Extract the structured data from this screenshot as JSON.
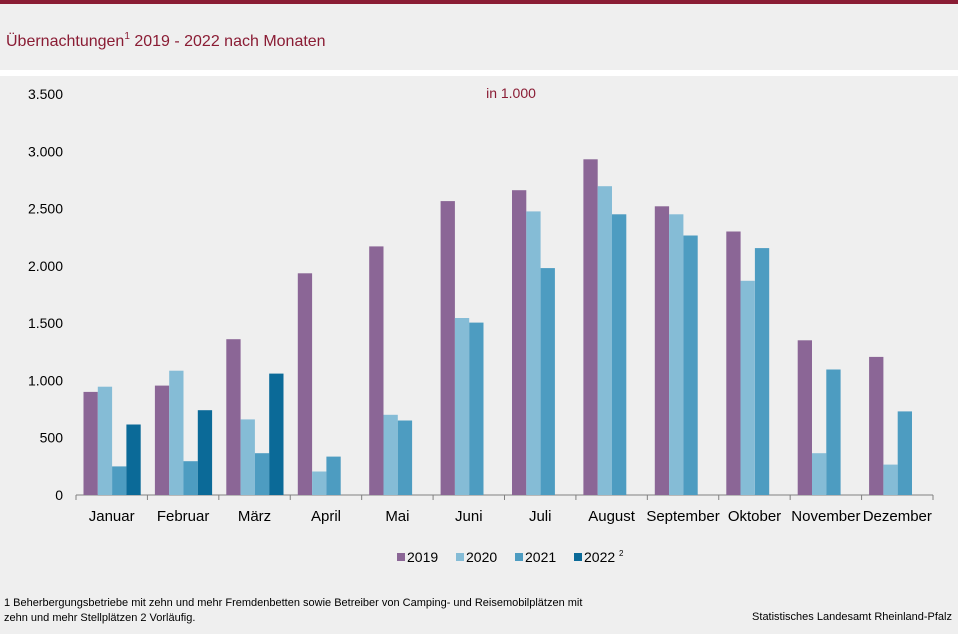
{
  "title": {
    "main": "Übernachtungen",
    "sup": "1",
    "rest": " 2019  - 2022  nach Monaten"
  },
  "unit_label": "in 1.000",
  "footnote": "1 Beherbergungsbetriebe  mit zehn und mehr Fremdenbetten  sowie Betreiber von Camping-  und Reisemobilplätzen  mit zehn und  mehr Stellplätzen 2 Vorläufig.",
  "source": "Statistisches Landesamt Rheinland-Pfalz",
  "colors": {
    "2019": "#8b6696",
    "2020": "#85bcd6",
    "2021": "#4d9cc1",
    "2022": "#0b6a98",
    "accent": "#8a1c34"
  },
  "chart_data": {
    "type": "bar",
    "title": "Übernachtungen1 2019 - 2022 nach Monaten",
    "ylabel": "in 1.000",
    "ylim": [
      0,
      3500
    ],
    "yticks": [
      0,
      500,
      1000,
      1500,
      2000,
      2500,
      3000,
      3500
    ],
    "ytick_labels": [
      "0",
      "500",
      "1.000",
      "1.500",
      "2.000",
      "2.500",
      "3.000",
      "3.500"
    ],
    "legend_position": "bottom",
    "grid": false,
    "categories": [
      "Januar",
      "Februar",
      "März",
      "April",
      "Mai",
      "Juni",
      "Juli",
      "August",
      "September",
      "Oktober",
      "November",
      "Dezember"
    ],
    "series": [
      {
        "name": "2019",
        "values": [
          900,
          955,
          1360,
          1935,
          2170,
          2565,
          2660,
          2930,
          2520,
          2300,
          1350,
          1205
        ]
      },
      {
        "name": "2020",
        "values": [
          945,
          1085,
          660,
          205,
          700,
          1545,
          2475,
          2695,
          2450,
          1870,
          365,
          265
        ]
      },
      {
        "name": "2021",
        "values": [
          250,
          295,
          365,
          335,
          650,
          1505,
          1980,
          2450,
          2265,
          2155,
          1095,
          730
        ]
      },
      {
        "name": "2022",
        "legend_sup": "2",
        "values": [
          615,
          740,
          1060,
          null,
          null,
          null,
          null,
          null,
          null,
          null,
          null,
          null
        ]
      }
    ]
  }
}
